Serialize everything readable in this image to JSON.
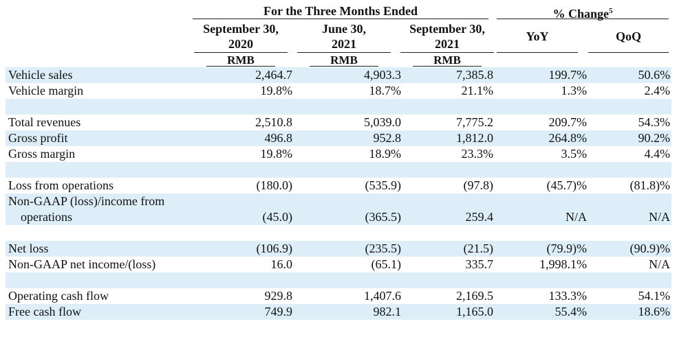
{
  "header": {
    "group_title": "For the Three Months Ended",
    "pct_change": "% Change",
    "pct_footnote": "5",
    "cols": [
      {
        "line1": "September 30,",
        "line2": "2020"
      },
      {
        "line1": "June 30,",
        "line2": "2021"
      },
      {
        "line1": "September 30,",
        "line2": "2021"
      }
    ],
    "yoy": "YoY",
    "qoq": "QoQ",
    "unit": "RMB"
  },
  "rows": [
    {
      "label": "Vehicle sales",
      "v": [
        "2,464.7",
        "4,903.3",
        "7,385.8",
        "199.7%",
        "50.6%"
      ]
    },
    {
      "label": "Vehicle margin",
      "v": [
        "19.8%",
        "18.7%",
        "21.1%",
        "1.3%",
        "2.4%"
      ]
    },
    {
      "label": "",
      "v": [
        "",
        "",
        "",
        "",
        ""
      ]
    },
    {
      "label": "Total revenues",
      "v": [
        "2,510.8",
        "5,039.0",
        "7,775.2",
        "209.7%",
        "54.3%"
      ]
    },
    {
      "label": "Gross profit",
      "v": [
        "496.8",
        "952.8",
        "1,812.0",
        "264.8%",
        "90.2%"
      ]
    },
    {
      "label": "Gross margin",
      "v": [
        "19.8%",
        "18.9%",
        "23.3%",
        "3.5%",
        "4.4%"
      ]
    },
    {
      "label": "",
      "v": [
        "",
        "",
        "",
        "",
        ""
      ]
    },
    {
      "label": "Loss from operations",
      "v": [
        "(180.0)",
        "(535.9)",
        "(97.8)",
        "(45.7)%",
        "(81.8)%"
      ]
    },
    {
      "label": "Non-GAAP (loss)/income from",
      "v": [
        "",
        "",
        "",
        "",
        ""
      ]
    },
    {
      "label": "operations",
      "indent": true,
      "v": [
        "(45.0)",
        "(365.5)",
        "259.4",
        "N/A",
        "N/A"
      ]
    },
    {
      "label": "",
      "v": [
        "",
        "",
        "",
        "",
        ""
      ]
    },
    {
      "label": "Net loss",
      "v": [
        "(106.9)",
        "(235.5)",
        "(21.5)",
        "(79.9)%",
        "(90.9)%"
      ]
    },
    {
      "label": "Non-GAAP net income/(loss)",
      "v": [
        "16.0",
        "(65.1)",
        "335.7",
        "1,998.1%",
        "N/A"
      ]
    },
    {
      "label": "",
      "v": [
        "",
        "",
        "",
        "",
        ""
      ]
    },
    {
      "label": "Operating cash flow",
      "v": [
        "929.8",
        "1,407.6",
        "2,169.5",
        "133.3%",
        "54.1%"
      ]
    },
    {
      "label": "Free cash flow",
      "v": [
        "749.9",
        "982.1",
        "1,165.0",
        "55.4%",
        "18.6%"
      ]
    }
  ]
}
